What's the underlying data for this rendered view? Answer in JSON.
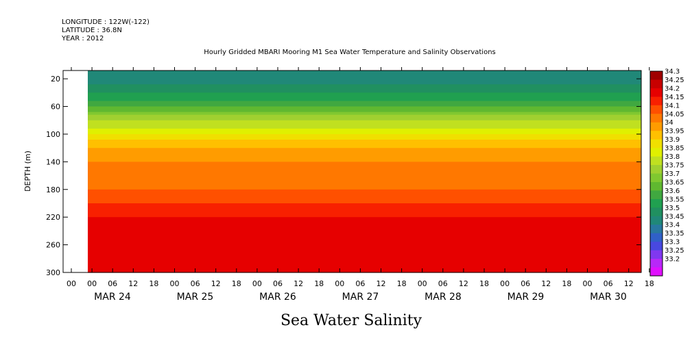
{
  "header": {
    "longitude": "LONGITUDE : 122W(-122)",
    "latitude": "LATITUDE : 36.8N",
    "year": "YEAR : 2012"
  },
  "chart_data": {
    "type": "heatmap",
    "title": "Hourly Gridded MBARI Mooring M1 Sea Water Temperature and Salinity Observations",
    "subtitle": "Sea Water Salinity",
    "ylabel": "DEPTH (m)",
    "y_ticks": [
      20,
      60,
      100,
      140,
      180,
      220,
      260,
      300
    ],
    "ylim": [
      300,
      8
    ],
    "x_hour_ticks": [
      "00",
      "00",
      "06",
      "12",
      "18",
      "00",
      "06",
      "12",
      "18",
      "00",
      "06",
      "12",
      "18",
      "00",
      "06",
      "12",
      "18",
      "00",
      "06",
      "12",
      "18",
      "00",
      "06",
      "12",
      "18",
      "00",
      "06",
      "12",
      "18"
    ],
    "x_days": [
      "MAR 24",
      "MAR 25",
      "MAR 26",
      "MAR 27",
      "MAR 28",
      "MAR 29",
      "MAR 30"
    ],
    "colorbar_levels": [
      "34.3",
      "34.25",
      "34.2",
      "34.15",
      "34.1",
      "34.05",
      "34",
      "33.95",
      "33.9",
      "33.85",
      "33.8",
      "33.75",
      "33.7",
      "33.65",
      "33.6",
      "33.55",
      "33.5",
      "33.45",
      "33.4",
      "33.35",
      "33.3",
      "33.25",
      "33.2"
    ],
    "colorbar_colors": [
      "#a00000",
      "#c80000",
      "#e60000",
      "#f82000",
      "#ff5000",
      "#ff7800",
      "#ff9c00",
      "#ffc000",
      "#f0e000",
      "#e0f000",
      "#c0e020",
      "#a0d030",
      "#80c830",
      "#60b830",
      "#40a840",
      "#20a050",
      "#209060",
      "#208878",
      "#2878a0",
      "#3060c8",
      "#4848e0",
      "#8038f0",
      "#b828f8",
      "#e010ff"
    ],
    "depth_profile": [
      {
        "depth": 10,
        "salinity": 33.45
      },
      {
        "depth": 20,
        "salinity": 33.45
      },
      {
        "depth": 40,
        "salinity": 33.55
      },
      {
        "depth": 60,
        "salinity": 33.65
      },
      {
        "depth": 80,
        "salinity": 33.8
      },
      {
        "depth": 100,
        "salinity": 33.9
      },
      {
        "depth": 120,
        "salinity": 34.0
      },
      {
        "depth": 140,
        "salinity": 34.05
      },
      {
        "depth": 180,
        "salinity": 34.1
      },
      {
        "depth": 220,
        "salinity": 34.2
      },
      {
        "depth": 260,
        "salinity": 34.25
      },
      {
        "depth": 300,
        "salinity": 34.2
      }
    ]
  }
}
